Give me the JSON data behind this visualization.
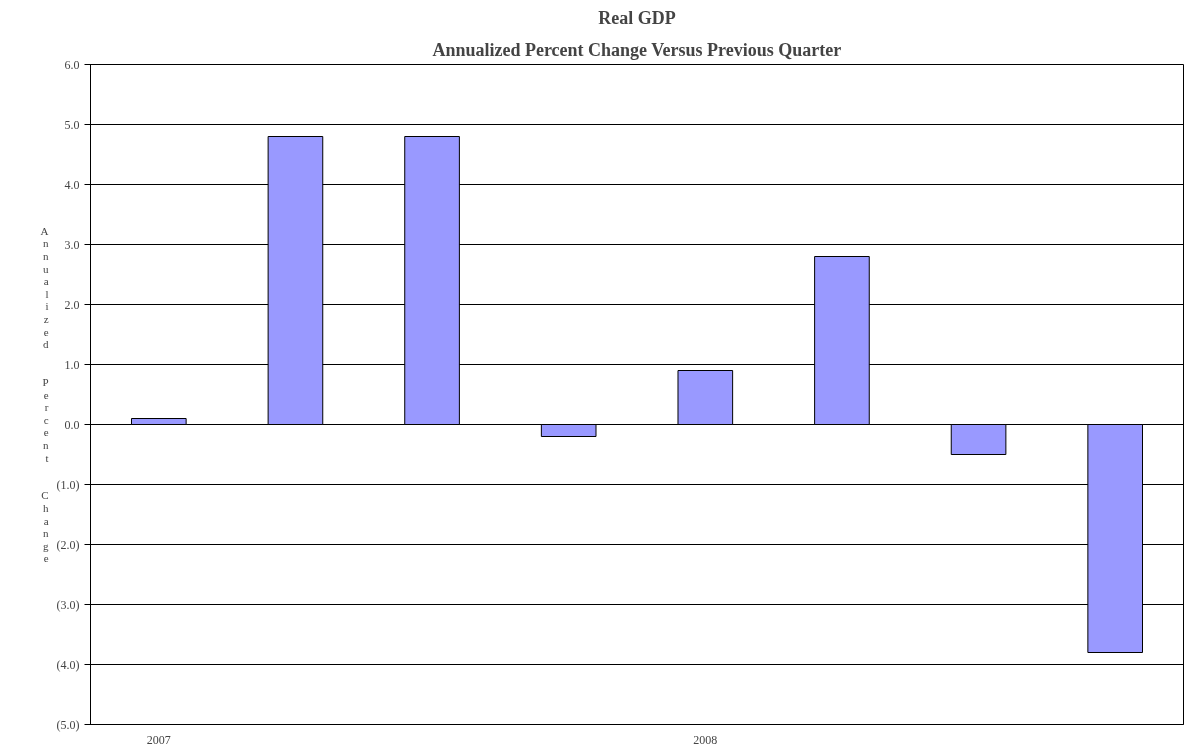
{
  "chart_data": {
    "type": "bar",
    "title": "Real GDP",
    "subtitle": "Annualized Percent Change Versus Previous Quarter",
    "ylabel": "Annualized  Percent  Change",
    "categories": [
      "2007",
      null,
      null,
      null,
      "2008",
      null,
      null,
      null
    ],
    "values": [
      0.1,
      4.8,
      4.8,
      -0.2,
      0.9,
      2.8,
      -0.5,
      -3.8
    ],
    "color": "#9999ff",
    "ylim": [
      -5,
      6
    ],
    "yticks": [
      {
        "value": -5,
        "label": "(5.0)"
      },
      {
        "value": -4,
        "label": "(4.0)"
      },
      {
        "value": -3,
        "label": "(3.0)"
      },
      {
        "value": -2,
        "label": "(2.0)"
      },
      {
        "value": -1,
        "label": "(1.0)"
      },
      {
        "value": 0,
        "label": "0.0"
      },
      {
        "value": 1,
        "label": "1.0"
      },
      {
        "value": 2,
        "label": "2.0"
      },
      {
        "value": 3,
        "label": "3.0"
      },
      {
        "value": 4,
        "label": "4.0"
      },
      {
        "value": 5,
        "label": "5.0"
      },
      {
        "value": 6,
        "label": "6.0"
      }
    ],
    "grid": "y"
  }
}
